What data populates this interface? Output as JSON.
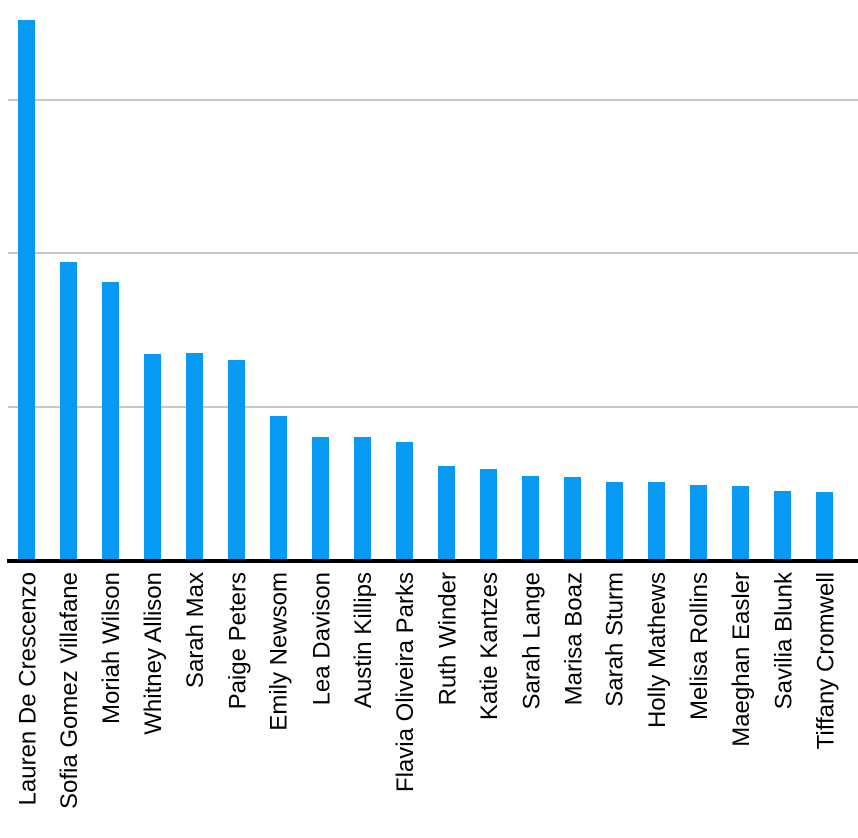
{
  "chart_data": {
    "type": "bar",
    "title": "",
    "xlabel": "",
    "ylabel": "",
    "categories": [
      "Lauren De Crescenzo",
      "Sofia Gomez Villafane",
      "Moriah Wilson",
      "Whitney Allison",
      "Sarah Max",
      "Paige Peters",
      "Emily Newsom",
      "Lea Davison",
      "Austin Killips",
      "Flavia Oliveira Parks",
      "Ruth Winder",
      "Katie Kantzes",
      "Sarah Lange",
      "Marisa Boaz",
      "Sarah Sturm",
      "Holly Mathews",
      "Melisa Rollins",
      "Maeghan Easler",
      "Savilia Blunk",
      "Tiffany Cromwell"
    ],
    "values": [
      3.52,
      1.94,
      1.81,
      1.34,
      1.35,
      1.3,
      0.94,
      0.8,
      0.8,
      0.77,
      0.61,
      0.59,
      0.55,
      0.54,
      0.51,
      0.51,
      0.49,
      0.48,
      0.45,
      0.44
    ],
    "y_axis_labels_visible": false,
    "value_units": "gridline-intervals (y axis has no visible tick labels)",
    "ylim": [
      0,
      3.65
    ],
    "y_gridlines": [
      1,
      2,
      3
    ],
    "grid": "horizontal only",
    "legend": "none",
    "bar_color": "#069af3",
    "gridline_color": "#c8c8c8",
    "axis_color": "#000000",
    "label_color": "#000000"
  }
}
